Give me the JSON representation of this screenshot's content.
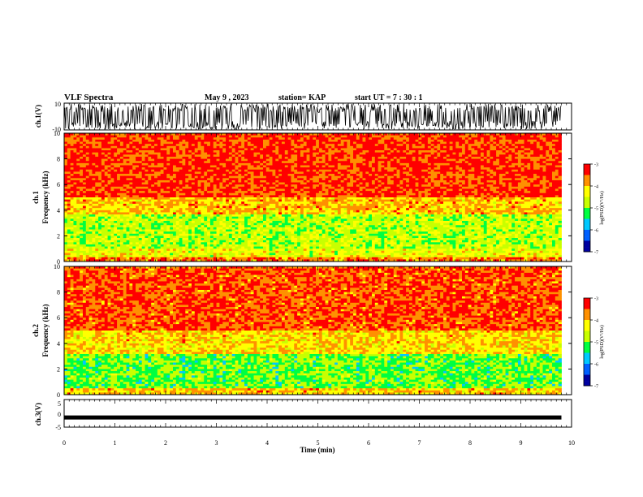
{
  "header": {
    "title": "VLF Spectra",
    "date": "May 9  , 2023",
    "station": "station= KAP",
    "start": "start  UT  =   7 : 30 : 1"
  },
  "colors": {
    "colormap": [
      "#0000a0",
      "#0060ff",
      "#00c8ff",
      "#00ff40",
      "#c8ff00",
      "#ffff00",
      "#ff9000",
      "#ff0000",
      "#ffffff"
    ],
    "axes": "#000000",
    "trace": "#000000"
  },
  "chart_data": [
    {
      "type": "line",
      "name": "ch1-waveform",
      "ylabel": "ch.1(V)",
      "ylim": [
        -10,
        10
      ],
      "yticks": [
        "10",
        "-10"
      ],
      "xlim": [
        0,
        10
      ],
      "description_values": {
        "amplitude_min": -10,
        "amplitude_max": 10
      }
    },
    {
      "type": "heatmap",
      "name": "ch1-spectrogram",
      "ylabel": "ch.1\nFrequency (kHz)",
      "ylabel_line1": "ch.1",
      "ylabel_line2": "Frequency  (kHz)",
      "ylim": [
        0,
        10
      ],
      "yticks": [
        "0",
        "2",
        "4",
        "6",
        "8",
        "10"
      ],
      "xlim": [
        0,
        10
      ],
      "data_end_min": 9.8,
      "bands": [
        {
          "f0": 0.0,
          "f1": 0.3,
          "level": -3.6
        },
        {
          "f0": 0.3,
          "f1": 1.0,
          "level": -4.4
        },
        {
          "f0": 1.0,
          "f1": 3.6,
          "level": -4.7
        },
        {
          "f0": 3.6,
          "f1": 5.0,
          "level": -4.0
        },
        {
          "f0": 5.0,
          "f1": 10.0,
          "level": -3.4
        }
      ],
      "colorbar": {
        "label": "log(PSD)(V²/Hz)",
        "ticks": [
          "-3",
          "-4",
          "-5",
          "-6",
          "-7"
        ],
        "range": [
          -7,
          -3
        ]
      }
    },
    {
      "type": "heatmap",
      "name": "ch2-spectrogram",
      "ylabel_line1": "ch.2",
      "ylabel_line2": "Frequency  (kHz)",
      "ylim": [
        0,
        10
      ],
      "yticks": [
        "0",
        "2",
        "4",
        "6",
        "8",
        "10"
      ],
      "xlim": [
        0,
        10
      ],
      "data_end_min": 9.8,
      "bands": [
        {
          "f0": 0.0,
          "f1": 0.5,
          "level": -4.0
        },
        {
          "f0": 0.5,
          "f1": 3.2,
          "level": -5.0
        },
        {
          "f0": 3.2,
          "f1": 5.0,
          "level": -4.1
        },
        {
          "f0": 5.0,
          "f1": 10.0,
          "level": -3.5
        }
      ],
      "colorbar": {
        "label": "log(PSD)(V²/Hz)",
        "ticks": [
          "-3",
          "-4",
          "-5",
          "-6",
          "-7"
        ],
        "range": [
          -7,
          -3
        ]
      }
    },
    {
      "type": "line",
      "name": "ch3-waveform",
      "ylabel": "ch.3(V)",
      "ylim": [
        -5,
        5
      ],
      "yticks": [
        "5",
        "0",
        "-5"
      ],
      "xlim": [
        0,
        10
      ],
      "level_value": -1.5,
      "xlabel": "Time  (min)",
      "xticks": [
        "0",
        "1",
        "2",
        "3",
        "4",
        "5",
        "6",
        "7",
        "8",
        "9",
        "10"
      ]
    }
  ]
}
